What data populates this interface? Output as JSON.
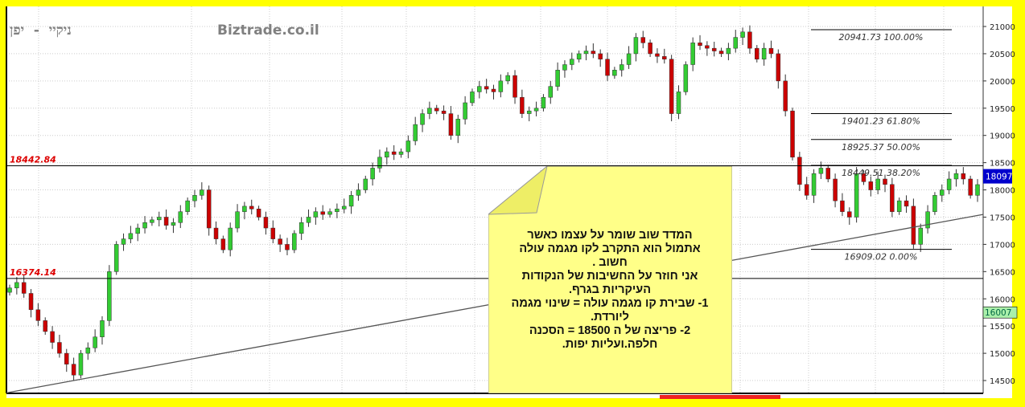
{
  "header": {
    "instrument_title": "ניקיי - יפן",
    "brand": "Biztrade.co.il"
  },
  "note": {
    "text": "המדד שוב שומר על עצמו כאשר\nאתמול הוא התקרב לקו מגמה עולה\nחשוב .\nאני חוזר על החשיבות של הנקודות\nהעיקריות בגרף.\n1- שבירת קו מגמה עולה = שינוי מגמה\nליורדת.\n2- פריצה של ה 18500 = הסכנה\nחלפה.ועליות יפות.",
    "bg_color": "#ffff88"
  },
  "chart_data": {
    "type": "candlestick",
    "y_ticks": [
      14500,
      15000,
      15500,
      16000,
      16500,
      17000,
      17500,
      18000,
      18500,
      19000,
      19500,
      20000,
      20500,
      21000
    ],
    "ylim": [
      14300,
      21100
    ],
    "grid": true,
    "closes": [
      16200,
      16300,
      16100,
      15800,
      15600,
      15400,
      15200,
      15000,
      14800,
      14600,
      15000,
      15100,
      15300,
      15600,
      16500,
      17000,
      17100,
      17200,
      17300,
      17400,
      17450,
      17500,
      17350,
      17400,
      17600,
      17800,
      17900,
      18000,
      17300,
      17100,
      16900,
      17300,
      17600,
      17700,
      17650,
      17500,
      17300,
      17100,
      17000,
      16900,
      17200,
      17400,
      17500,
      17600,
      17550,
      17600,
      17650,
      17700,
      17900,
      18000,
      18200,
      18400,
      18600,
      18700,
      18650,
      18700,
      18900,
      19200,
      19400,
      19500,
      19450,
      19400,
      19000,
      19300,
      19600,
      19800,
      19900,
      19850,
      19800,
      20000,
      20100,
      19700,
      19400,
      19450,
      19500,
      19700,
      19900,
      20200,
      20300,
      20400,
      20500,
      20550,
      20500,
      20400,
      20100,
      20200,
      20300,
      20500,
      20800,
      20700,
      20500,
      20450,
      20400,
      19400,
      19800,
      20300,
      20700,
      20650,
      20600,
      20550,
      20500,
      20600,
      20800,
      20900,
      20600,
      20400,
      20600,
      20500,
      20000,
      19450,
      18600,
      18100,
      17900,
      18300,
      18400,
      18200,
      17800,
      17600,
      17500,
      18300,
      18150,
      18000,
      18200,
      18100,
      17600,
      17800,
      17700,
      17000,
      17300,
      17600,
      17900,
      18000,
      18200,
      18300,
      18200,
      17900,
      18097
    ],
    "horizontal_levels": [
      {
        "value": 18442.84,
        "label": "18442.84"
      },
      {
        "value": 16374.14,
        "label": "16374.14"
      }
    ],
    "fibonacci": [
      {
        "value": 20941.73,
        "label": "20941.73 100.00%"
      },
      {
        "value": 19401.23,
        "label": "19401.23 61.80%"
      },
      {
        "value": 18925.37,
        "label": "18925.37 50.00%"
      },
      {
        "value": 18449.51,
        "label": "18449.51 38.20%"
      },
      {
        "value": 16909.02,
        "label": "16909.02 0.00%"
      }
    ],
    "trendline": {
      "start": 14274,
      "end": 17549
    },
    "last_price": {
      "value": "18097",
      "color": "#0000cc"
    },
    "marker_price": {
      "value": "16007",
      "color": "#aaf0aa"
    },
    "colors": {
      "up": "#33cc33",
      "down": "#cc0000",
      "level_label": "#dd0000"
    }
  }
}
